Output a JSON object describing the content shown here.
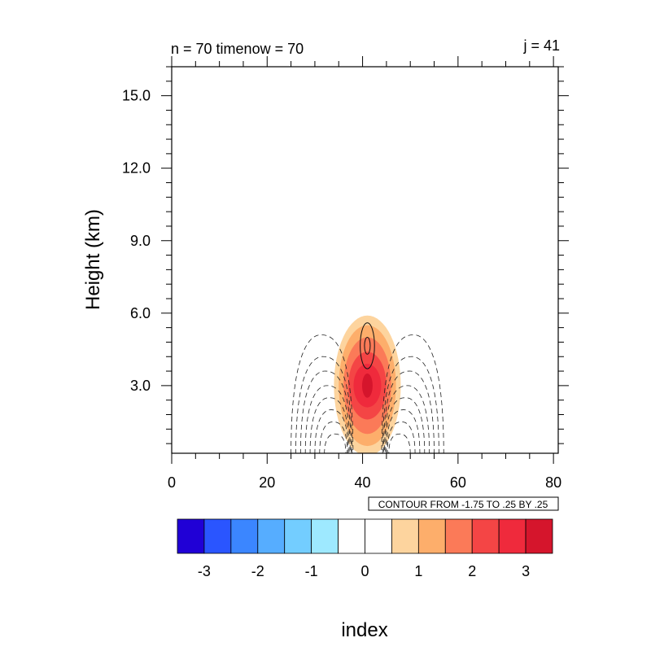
{
  "chart_data": {
    "type": "heatmap",
    "title_left": "n = 70 timenow = 70",
    "title_right": "j = 41",
    "xlabel": "index",
    "ylabel": "Height (km)",
    "xlim": [
      0,
      81
    ],
    "ylim": [
      0.2,
      16.2
    ],
    "x_ticks": [
      0,
      20,
      40,
      60,
      80
    ],
    "x_tick_labels": [
      "0",
      "20",
      "40",
      "60",
      "80"
    ],
    "y_ticks": [
      3,
      6,
      9,
      12,
      15
    ],
    "y_tick_labels": [
      "3.0",
      "6.0",
      "9.0",
      "12.0",
      "15.0"
    ],
    "grid": false,
    "contour_info": "CONTOUR FROM -1.75 TO .25 BY .25",
    "filled_field": {
      "center_x": 41,
      "center_y": 3.0,
      "peak_value": 3.4,
      "levels": [
        {
          "min": 0.5,
          "color": "#fdd49e",
          "x_halfwidth": 7,
          "y_top": 5.9,
          "y_center": 3.0
        },
        {
          "min": 1.0,
          "color": "#fdae6b",
          "x_halfwidth": 6,
          "y_top": 5.5,
          "y_center": 3.0
        },
        {
          "min": 1.5,
          "color": "#fb7a58",
          "x_halfwidth": 5,
          "y_top": 5.0,
          "y_center": 3.0
        },
        {
          "min": 2.0,
          "color": "#f44545",
          "x_halfwidth": 4,
          "y_top": 4.4,
          "y_center": 3.0
        },
        {
          "min": 2.5,
          "color": "#ef2a3c",
          "x_halfwidth": 2.9,
          "y_top": 3.9,
          "y_center": 3.0
        },
        {
          "min": 3.0,
          "color": "#d5152c",
          "x_halfwidth": 1.1,
          "y_top": 3.5,
          "y_center": 3.0
        }
      ]
    },
    "line_contours": {
      "dashed_negative": [
        {
          "x_inner": 38.0,
          "x_outer": 25.0,
          "y_top": 5.1
        },
        {
          "x_inner": 37.8,
          "x_outer": 26.0,
          "y_top": 4.2
        },
        {
          "x_inner": 37.6,
          "x_outer": 27.0,
          "y_top": 3.6
        },
        {
          "x_inner": 37.4,
          "x_outer": 28.0,
          "y_top": 3.0
        },
        {
          "x_inner": 37.2,
          "x_outer": 29.0,
          "y_top": 2.5
        },
        {
          "x_inner": 37.0,
          "x_outer": 30.0,
          "y_top": 2.0
        },
        {
          "x_inner": 36.8,
          "x_outer": 31.0,
          "y_top": 1.5
        },
        {
          "x_inner": 36.5,
          "x_outer": 32.0,
          "y_top": 1.0
        }
      ],
      "solid_positive": [
        {
          "center_x": 41,
          "half_width": 1.5,
          "y_bottom": 3.7,
          "y_top": 5.6
        },
        {
          "center_x": 41,
          "half_width": 0.6,
          "y_bottom": 4.3,
          "y_top": 5.0
        }
      ]
    },
    "colorbar": {
      "colors": [
        "#2000d6",
        "#2a55ff",
        "#3b86ff",
        "#56adff",
        "#73cdff",
        "#9ee9ff",
        "#ffffff",
        "#ffffff",
        "#fdd49e",
        "#fdae6b",
        "#fb7a58",
        "#f44545",
        "#ef2a3c",
        "#d5152c"
      ],
      "labels": [
        "-3",
        "-2",
        "-1",
        "0",
        "1",
        "2",
        "3"
      ],
      "label_box_index": [
        1,
        3,
        5,
        7,
        9,
        11,
        13
      ]
    }
  }
}
